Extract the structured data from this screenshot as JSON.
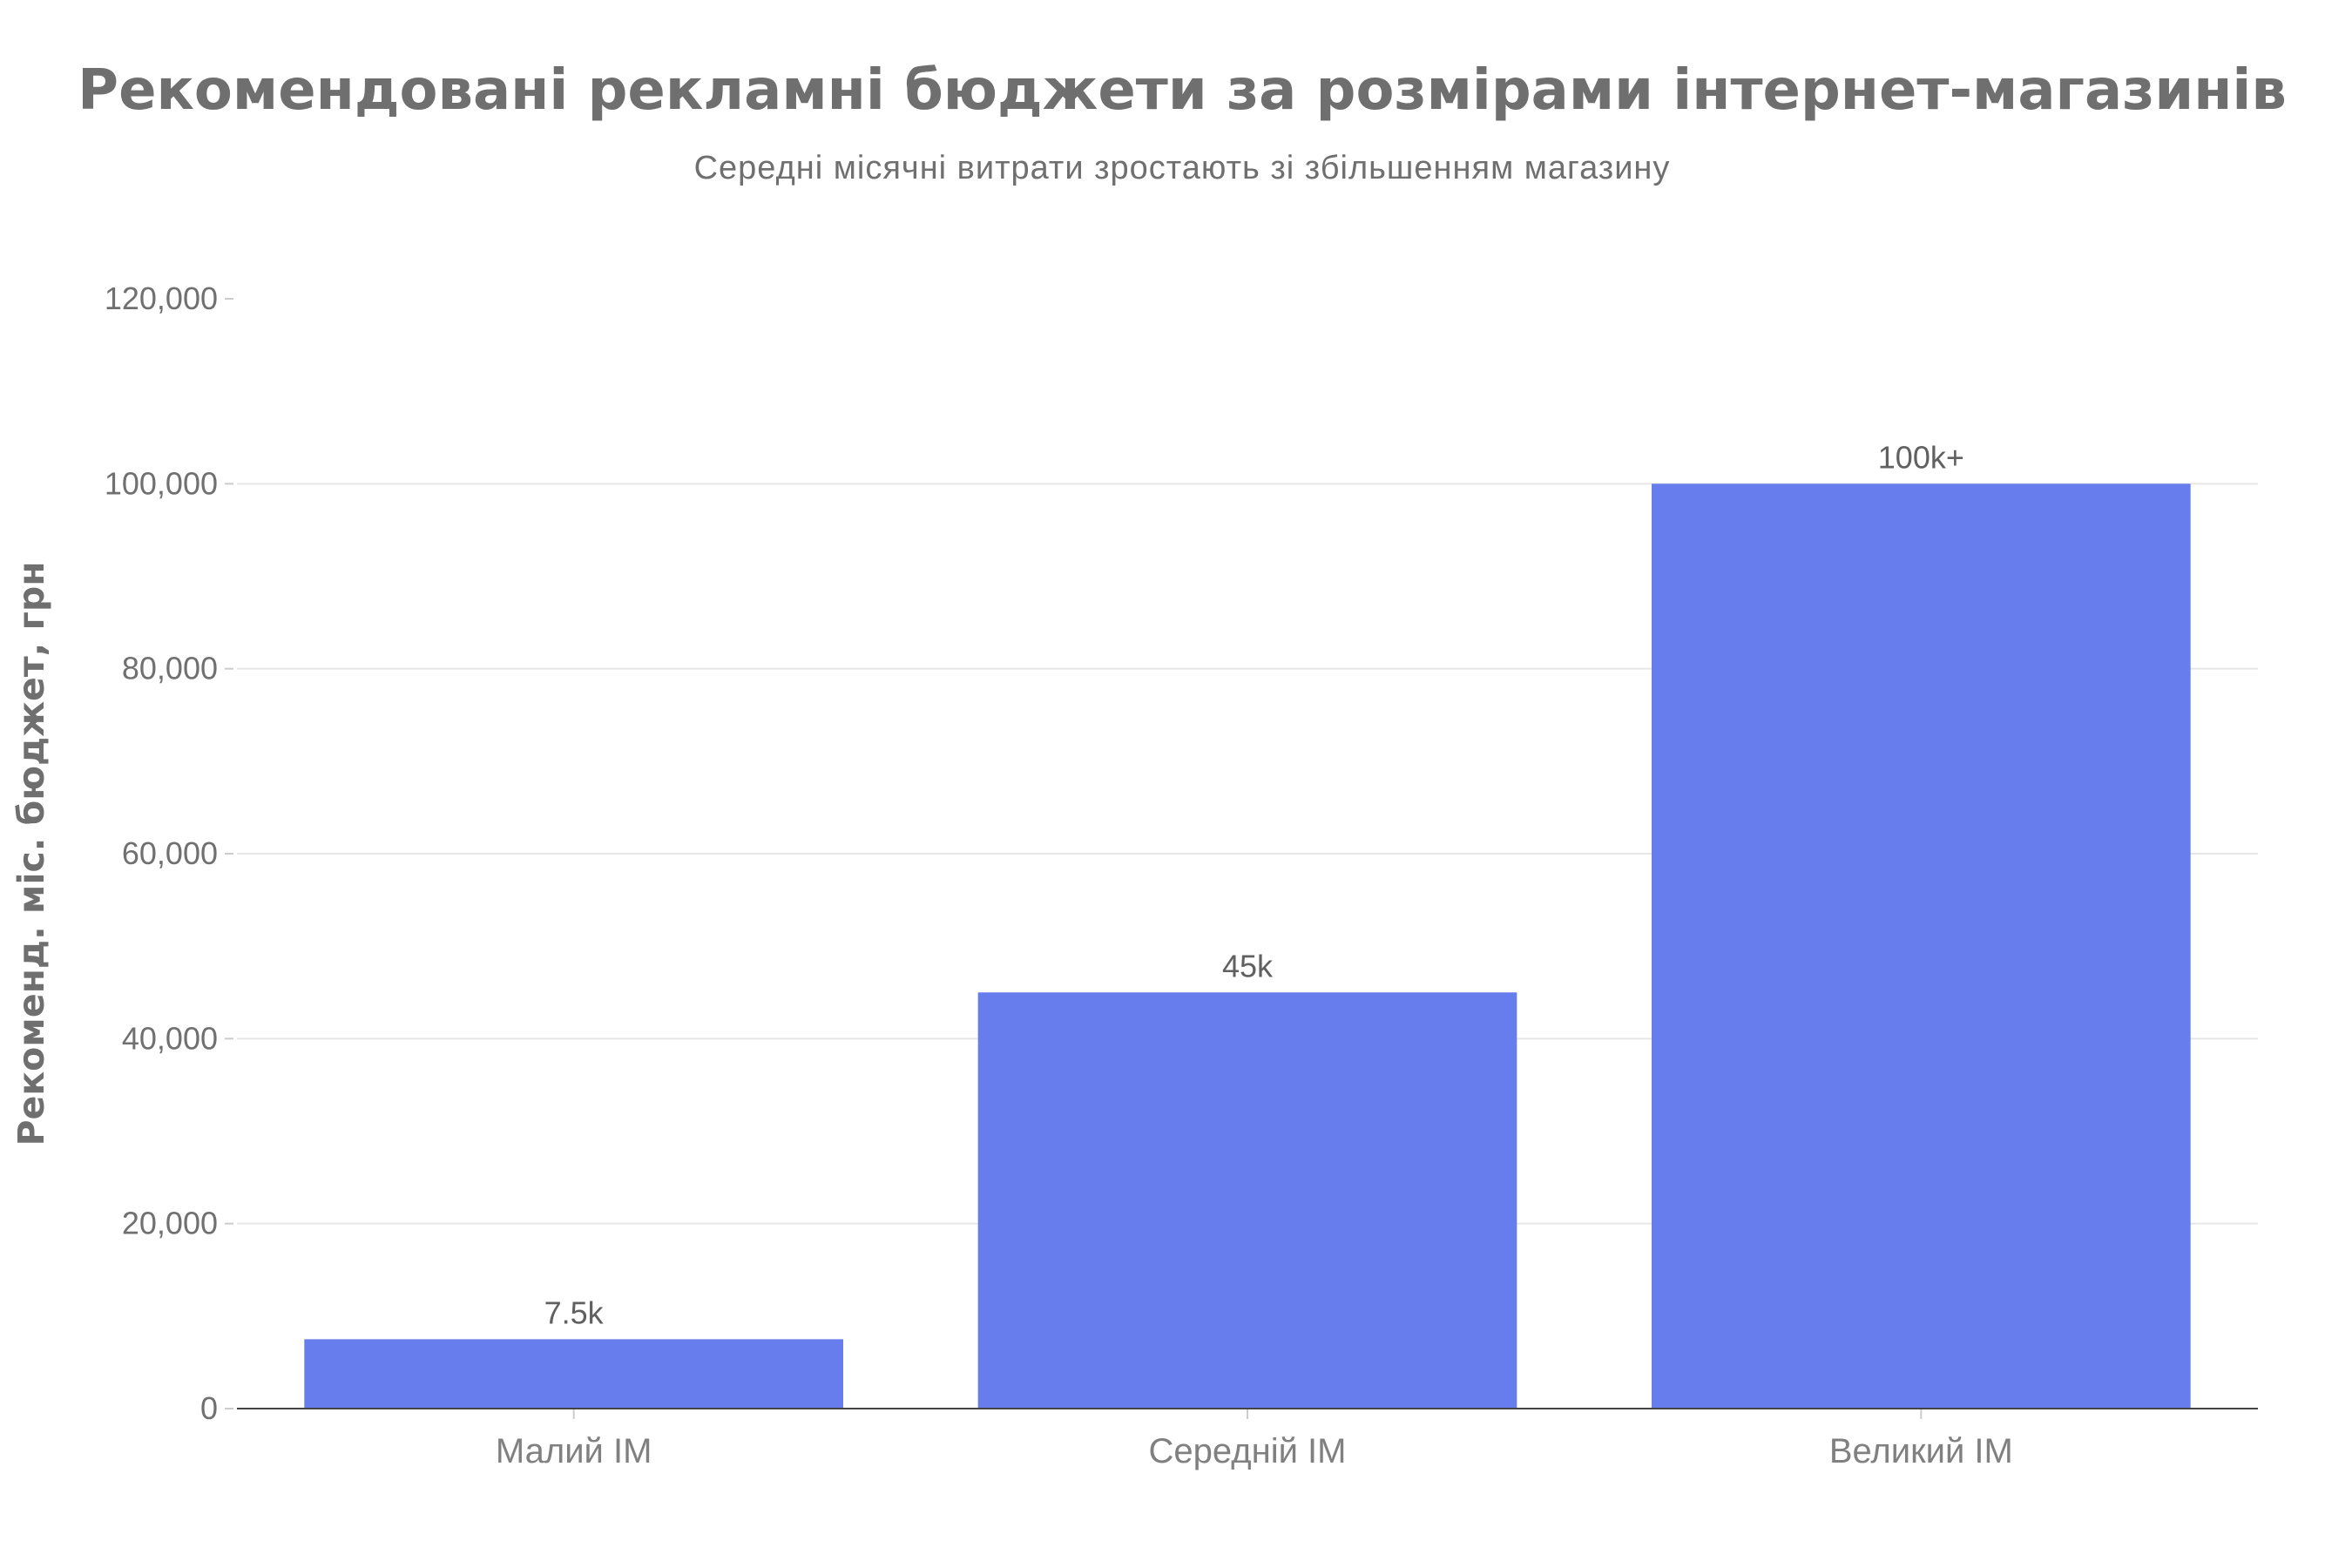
{
  "chart_data": {
    "type": "bar",
    "title": "Рекомендовані рекламні бюджети за розмірами інтернет-магазинів",
    "subtitle": "Середні місячні витрати зростають зі збільшенням магазину",
    "xlabel": "",
    "ylabel": "Рекоменд. міс. бюджет, грн",
    "categories": [
      "Малий ІМ",
      "Середній ІМ",
      "Великий ІМ"
    ],
    "values": [
      7500,
      45000,
      100000
    ],
    "data_labels": [
      "7.5k",
      "45k",
      "100k+"
    ],
    "ylim": [
      0,
      120000
    ],
    "yticks": [
      0,
      20000,
      40000,
      60000,
      80000,
      100000,
      120000
    ],
    "ytick_labels": [
      "0",
      "20,000",
      "40,000",
      "60,000",
      "80,000",
      "100,000",
      "120,000"
    ],
    "grid": true,
    "legend": "none",
    "bar_color": "#687ded"
  }
}
